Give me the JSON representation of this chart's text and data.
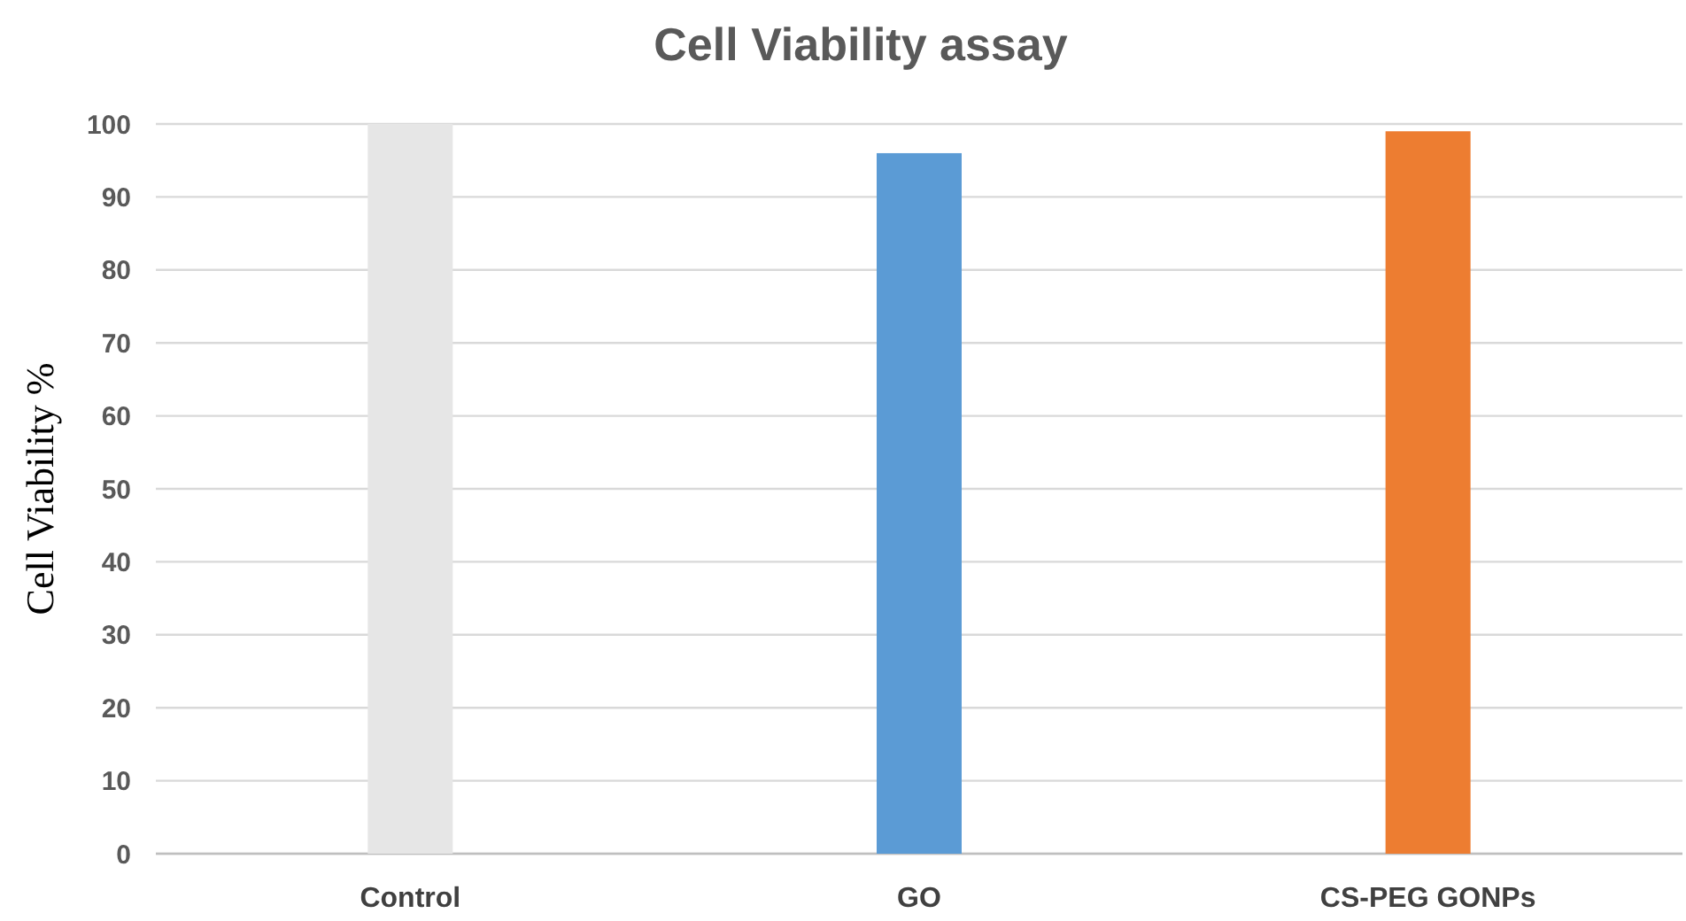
{
  "chart_data": {
    "type": "bar",
    "title": "Cell Viability assay",
    "ylabel": "Cell Viability %",
    "categories": [
      "Control",
      "GO",
      "CS-PEG GONPs"
    ],
    "values": [
      100,
      96,
      99
    ],
    "colors": [
      "#e6e6e6",
      "#5b9bd5",
      "#ed7d31"
    ],
    "ylim": [
      0,
      100
    ],
    "yticks": [
      0,
      10,
      20,
      30,
      40,
      50,
      60,
      70,
      80,
      90,
      100
    ],
    "grid": "y"
  }
}
